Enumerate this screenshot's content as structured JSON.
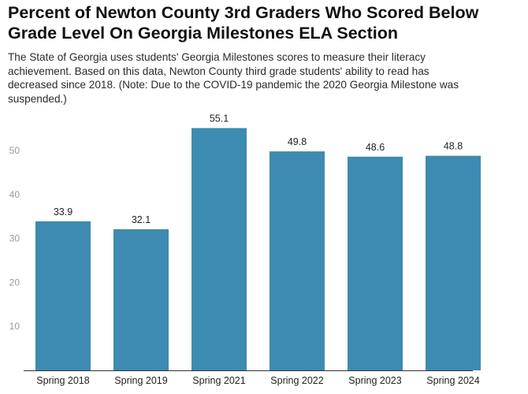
{
  "title_lines": [
    "Percent of Newton County 3rd Graders Who Scored Below",
    "Grade Level On Georgia Milestones ELA Section"
  ],
  "subtitle_lines": [
    "The State of Georgia uses students' Georgia Milestones scores to measure their literacy",
    "achievement. Based on this data, Newton County third grade students' ability to read has",
    "decreased since 2018. (Note: Due to the COVID-19 pandemic the 2020 Georgia Milestone was",
    "suspended.)"
  ],
  "colors": {
    "bar": "#3d8bb0",
    "axis_tick_label": "#9a9a9a",
    "category_label": "#222222",
    "value_label": "#222222",
    "baseline": "#333333"
  },
  "chart_data": {
    "type": "bar",
    "categories": [
      "Spring 2018",
      "Spring 2019",
      "Spring 2021",
      "Spring 2022",
      "Spring 2023",
      "Spring 2024"
    ],
    "values": [
      33.9,
      32.1,
      55.1,
      49.8,
      48.6,
      48.8
    ],
    "value_labels": [
      "33.9",
      "32.1",
      "55.1",
      "49.8",
      "48.6",
      "48.8"
    ],
    "xlabel": "",
    "ylabel": "",
    "ylim": [
      0,
      60
    ],
    "yticks": [
      10,
      20,
      30,
      40,
      50
    ],
    "grid": false,
    "legend": "none"
  }
}
